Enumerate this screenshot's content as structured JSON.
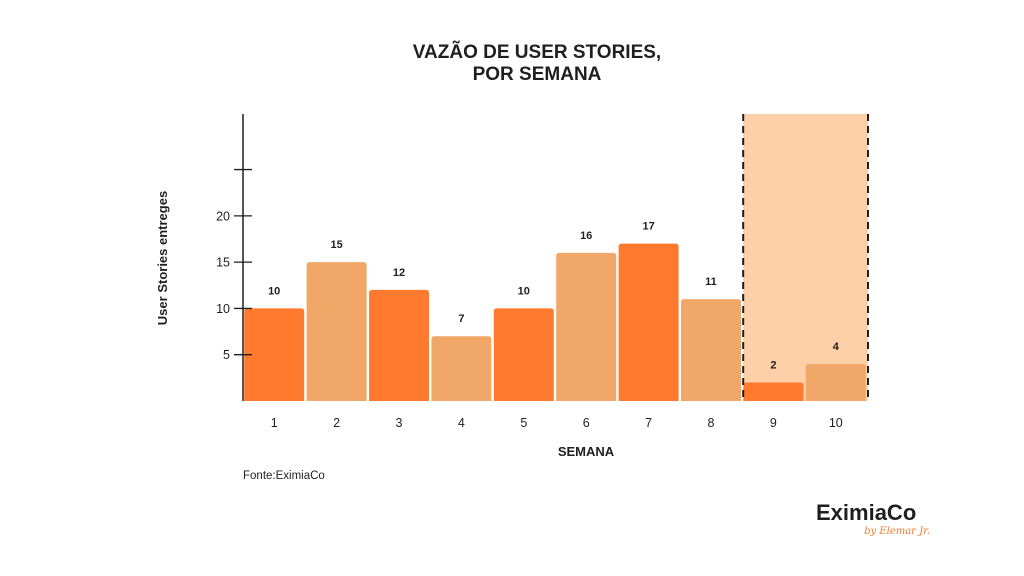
{
  "chart_data": {
    "type": "bar",
    "title_lines": [
      "VAZÃO DE USER STORIES,",
      "POR SEMANA"
    ],
    "xlabel": "SEMANA",
    "ylabel": "User Stories entreges",
    "categories": [
      "1",
      "2",
      "3",
      "4",
      "5",
      "6",
      "7",
      "8",
      "9",
      "10"
    ],
    "values": [
      10,
      15,
      12,
      7,
      10,
      16,
      17,
      11,
      2,
      4
    ],
    "value_labels": [
      "10",
      "15",
      "12",
      "7",
      "10",
      "16",
      "17",
      "11",
      "2",
      "4"
    ],
    "bar_colors": [
      "#ff7a2f",
      "#f0a767",
      "#ff7a2f",
      "#f0a767",
      "#ff7a2f",
      "#f0a767",
      "#ff7a2f",
      "#f0a767",
      "#ff7a2f",
      "#f0a767"
    ],
    "yticks": [
      5,
      10,
      15,
      20,
      25
    ],
    "ytick_labels": [
      "5",
      "10",
      "15",
      "20",
      ""
    ],
    "ylim": [
      0,
      31
    ],
    "grid": false,
    "highlight_categories": [
      "9",
      "10"
    ],
    "highlight_color": "#ffd0a8"
  },
  "source_text": "Fonte:EximiaCo",
  "logo": {
    "main": "EximiaCo",
    "sub": "by Elemar Jr."
  }
}
